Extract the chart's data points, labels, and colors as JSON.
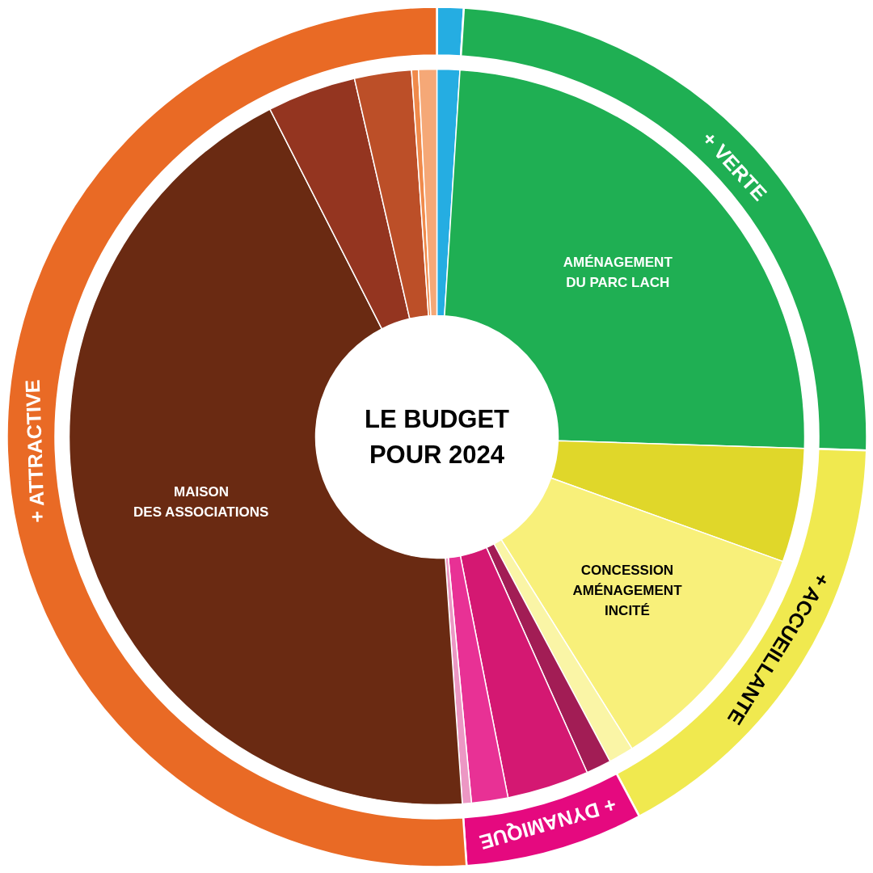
{
  "chart_data": [
    {
      "type": "donut",
      "title": "LE BUDGET\nPOUR 2024",
      "categories": [
        null,
        "AMÉNAGEMENT\nDU PARC LACH",
        null,
        "CONCESSION\nAMÉNAGEMENT\nINCITÉ",
        null,
        null,
        null,
        null,
        null,
        "MAISON\nDES ASSOCIATIONS",
        null,
        null,
        null,
        null
      ],
      "values": [
        1.0,
        24.5,
        5.0,
        10.6,
        1.1,
        1.1,
        3.6,
        1.6,
        0.4,
        43.6,
        3.9,
        2.5,
        0.3,
        0.8
      ],
      "colors": [
        "#25ade2",
        "#1faf53",
        "#e0d72a",
        "#f8f07a",
        "#faf5a6",
        "#a21d55",
        "#d41872",
        "#e83195",
        "#ec97c4",
        "#6a2a12",
        "#943520",
        "#bc4f28",
        "#f08a4b",
        "#f5a877"
      ]
    },
    {
      "type": "donut",
      "categories": [
        null,
        "+ VERTE",
        "+ ACCUEILLANTE",
        "+ DYNAMIQUE",
        "+ ATTRACTIVE"
      ],
      "values": [
        1.0,
        24.5,
        16.7,
        6.7,
        51.1
      ],
      "colors": [
        "#25ade2",
        "#1faf53",
        "#f0e94f",
        "#e5097f",
        "#e96a25"
      ]
    }
  ]
}
